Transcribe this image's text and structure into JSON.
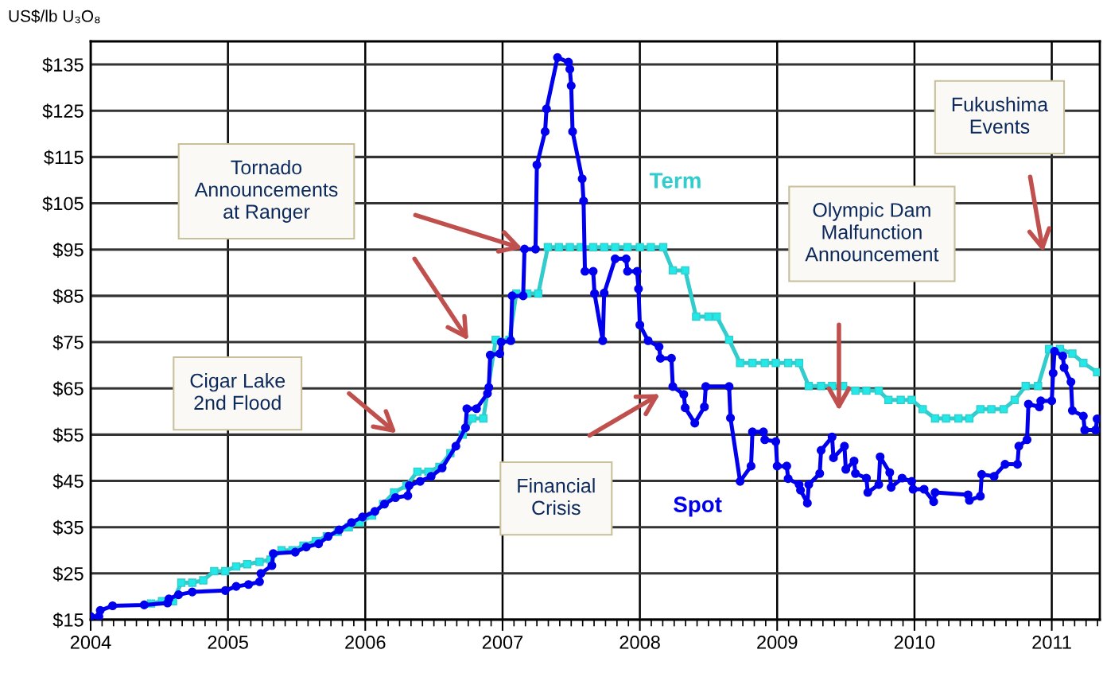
{
  "chart_data": {
    "type": "line",
    "ylabel": "US$/lb U₃O₈",
    "xlim": [
      2004,
      2011.35
    ],
    "xticks": [
      2004,
      2005,
      2006,
      2007,
      2008,
      2009,
      2010,
      2011
    ],
    "ylim": [
      15,
      140
    ],
    "yticks": [
      {
        "value": 15,
        "label": "$15"
      },
      {
        "value": 25,
        "label": "$25"
      },
      {
        "value": 35,
        "label": "$35"
      },
      {
        "value": 45,
        "label": "$45"
      },
      {
        "value": 55,
        "label": "$55"
      },
      {
        "value": 65,
        "label": "$65"
      },
      {
        "value": 75,
        "label": "$75"
      },
      {
        "value": 85,
        "label": "$85"
      },
      {
        "value": 95,
        "label": "$95"
      },
      {
        "value": 105,
        "label": "$105"
      },
      {
        "value": 115,
        "label": "$115"
      },
      {
        "value": 125,
        "label": "$125"
      },
      {
        "value": 135,
        "label": "$135"
      }
    ],
    "grid": true,
    "legend": false,
    "annotations": [
      "Tornado\nAnnouncements\nat Ranger",
      "Cigar Lake\n2nd Flood",
      "Financial\nCrisis",
      "Olympic Dam\nMalfunction\nAnnouncement",
      "Fukushima\nEvents"
    ],
    "series": [
      {
        "name": "Term",
        "color": "#33cccc",
        "marker": "square",
        "x": [
          2004.44,
          2004.52,
          2004.6,
          2004.66,
          2004.74,
          2004.82,
          2004.9,
          2004.98,
          2005.06,
          2005.14,
          2005.23,
          2005.31,
          2005.39,
          2005.47,
          2005.55,
          2005.64,
          2005.72,
          2005.8,
          2005.88,
          2005.96,
          2006.05,
          2006.13,
          2006.21,
          2006.3,
          2006.38,
          2006.46,
          2006.54,
          2006.62,
          2006.71,
          2006.78,
          2006.86,
          2006.95,
          2007.05,
          2007.1,
          2007.18,
          2007.26,
          2007.33,
          2007.41,
          2007.49,
          2007.57,
          2007.66,
          2007.74,
          2007.82,
          2007.91,
          2008.0,
          2008.08,
          2008.17,
          2008.24,
          2008.33,
          2008.41,
          2008.5,
          2008.56,
          2008.65,
          2008.73,
          2008.82,
          2008.91,
          2008.99,
          2009.08,
          2009.16,
          2009.23,
          2009.32,
          2009.4,
          2009.48,
          2009.57,
          2009.65,
          2009.74,
          2009.81,
          2009.9,
          2009.98,
          2010.06,
          2010.15,
          2010.23,
          2010.32,
          2010.4,
          2010.48,
          2010.56,
          2010.65,
          2010.73,
          2010.81,
          2010.9,
          2010.98,
          2011.06,
          2011.15,
          2011.23,
          2011.33
        ],
        "values": [
          18.5,
          19,
          19,
          23,
          23,
          23.5,
          25.5,
          25.5,
          26.5,
          27,
          27.5,
          28,
          30,
          30,
          31,
          32,
          33,
          34,
          35,
          36,
          37.5,
          40,
          42.5,
          44,
          47,
          47,
          48,
          51,
          55,
          58.5,
          58.5,
          75.5,
          75.5,
          85.5,
          85.5,
          85.5,
          95.5,
          95.5,
          95.5,
          95.5,
          95.5,
          95.5,
          95.5,
          95.5,
          95.5,
          95.5,
          95.5,
          90.5,
          90.5,
          80.5,
          80.5,
          80.5,
          75.5,
          70.5,
          70.5,
          70.5,
          70.5,
          70.5,
          70.5,
          65.5,
          65.5,
          65.5,
          65.5,
          64.5,
          64.5,
          64.5,
          62.5,
          62.5,
          62.5,
          60.5,
          58.5,
          58.5,
          58.5,
          58.5,
          60.5,
          60.5,
          60.5,
          62.5,
          65.5,
          65.5,
          73.5,
          73.5,
          72.5,
          70.5,
          68.5
        ]
      },
      {
        "name": "Spot",
        "color": "#0000ee",
        "marker": "circle",
        "x": [
          2004.0,
          2004.06,
          2004.07,
          2004.16,
          2004.39,
          2004.56,
          2004.57,
          2004.64,
          2004.74,
          2004.98,
          2005.06,
          2005.15,
          2005.23,
          2005.24,
          2005.32,
          2005.33,
          2005.49,
          2005.57,
          2005.66,
          2005.73,
          2005.81,
          2005.9,
          2005.98,
          2006.07,
          2006.14,
          2006.22,
          2006.31,
          2006.32,
          2006.4,
          2006.48,
          2006.56,
          2006.66,
          2006.73,
          2006.74,
          2006.81,
          2006.89,
          2006.9,
          2006.91,
          2006.98,
          2006.99,
          2007.06,
          2007.07,
          2007.15,
          2007.16,
          2007.24,
          2007.25,
          2007.31,
          2007.32,
          2007.4,
          2007.48,
          2007.49,
          2007.5,
          2007.51,
          2007.58,
          2007.59,
          2007.6,
          2007.66,
          2007.67,
          2007.73,
          2007.74,
          2007.82,
          2007.9,
          2007.91,
          2007.98,
          2007.99,
          2008.0,
          2008.06,
          2008.14,
          2008.15,
          2008.23,
          2008.24,
          2008.32,
          2008.33,
          2008.4,
          2008.47,
          2008.48,
          2008.65,
          2008.66,
          2008.73,
          2008.81,
          2008.82,
          2008.9,
          2008.91,
          2008.99,
          2009.0,
          2009.07,
          2009.08,
          2009.16,
          2009.17,
          2009.22,
          2009.23,
          2009.31,
          2009.32,
          2009.4,
          2009.41,
          2009.49,
          2009.5,
          2009.56,
          2009.57,
          2009.65,
          2009.66,
          2009.74,
          2009.75,
          2009.82,
          2009.83,
          2009.91,
          2009.98,
          2009.99,
          2010.07,
          2010.14,
          2010.15,
          2010.39,
          2010.4,
          2010.48,
          2010.49,
          2010.58,
          2010.66,
          2010.75,
          2010.76,
          2010.82,
          2010.83,
          2010.91,
          2010.92,
          2011.0,
          2011.01,
          2011.02,
          2011.08,
          2011.09,
          2011.14,
          2011.15,
          2011.23,
          2011.24,
          2011.32,
          2011.33
        ],
        "values": [
          15.7,
          15.7,
          17,
          18,
          18.2,
          18.6,
          19.5,
          20.4,
          21,
          21.3,
          22.2,
          22.6,
          23.2,
          25,
          26.7,
          29.3,
          29.6,
          30.7,
          31.4,
          33,
          34.4,
          36,
          37.2,
          38.4,
          40,
          41.4,
          41.8,
          44,
          44.9,
          46,
          47.8,
          52.5,
          56.5,
          60.6,
          60.6,
          63.9,
          65.2,
          72.2,
          72.5,
          75,
          75.3,
          85,
          85,
          95.1,
          95.1,
          113.3,
          120.5,
          125.4,
          136.5,
          135.5,
          134,
          130.4,
          120.5,
          110.3,
          105.5,
          90.3,
          90.3,
          85.5,
          75.3,
          85.6,
          93,
          93,
          90.3,
          90.3,
          86.5,
          78.7,
          75.3,
          74,
          71.5,
          71.5,
          65.4,
          63.7,
          60.8,
          57.5,
          61,
          65.4,
          65.4,
          58.6,
          44.9,
          48.2,
          55.6,
          55.6,
          53.9,
          53.5,
          48.2,
          48.2,
          45.5,
          44.2,
          43,
          40.2,
          44.2,
          46.6,
          51.6,
          54.5,
          50,
          52.5,
          47.5,
          49.3,
          46.6,
          45.6,
          42.5,
          44.2,
          50.2,
          46.8,
          43.6,
          45.6,
          44.9,
          43.2,
          43.2,
          40.5,
          42.5,
          42,
          40.8,
          41.7,
          46.4,
          46,
          48.6,
          48.6,
          52.5,
          53.9,
          61.6,
          61,
          62.3,
          62.3,
          68.3,
          73,
          72,
          69.5,
          66.4,
          60.2,
          59,
          56,
          56,
          58.4
        ]
      }
    ]
  }
}
